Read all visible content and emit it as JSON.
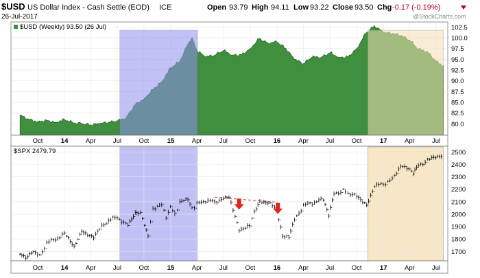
{
  "header": {
    "symbol": "$USD",
    "name": "US Dollar Index - Cash Settle (EOD)",
    "exchange": "ICE",
    "date": "26-Jul-2017",
    "open_label": "Open",
    "open": "93.79",
    "high_label": "High",
    "high": "94.11",
    "low_label": "Low",
    "low": "93.22",
    "close_label": "Close",
    "close": "93.50",
    "chg_label": "Chg",
    "chg": "-0.17 (-0.19%)",
    "watermark": "@StockCharts.com"
  },
  "colors": {
    "usd_fill": "#3f8f3f",
    "usd_line": "#1f5f1f",
    "highlight_blue": "#8f8ff0",
    "highlight_orange": "#f5dfb5",
    "arrow_red": "#e0261b",
    "trend_dash": "#e0261b",
    "chg_neg": "#c0001e"
  },
  "chart_data": [
    {
      "type": "area",
      "legend": "$USD (Weekly) 93.50 (26 Jul)",
      "x": [
        "2013-08-01",
        "2013-09-01",
        "2013-10-01",
        "2013-11-01",
        "2013-12-01",
        "2014-01-01",
        "2014-02-01",
        "2014-03-01",
        "2014-04-01",
        "2014-05-01",
        "2014-06-01",
        "2014-07-01",
        "2014-08-01",
        "2014-09-01",
        "2014-10-01",
        "2014-11-01",
        "2014-12-01",
        "2015-01-01",
        "2015-02-01",
        "2015-03-01",
        "2015-03-15",
        "2015-04-01",
        "2015-05-01",
        "2015-06-01",
        "2015-07-01",
        "2015-08-01",
        "2015-09-01",
        "2015-10-01",
        "2015-11-01",
        "2015-12-01",
        "2016-01-01",
        "2016-02-01",
        "2016-03-01",
        "2016-04-01",
        "2016-05-01",
        "2016-06-01",
        "2016-07-01",
        "2016-08-01",
        "2016-09-01",
        "2016-10-01",
        "2016-11-01",
        "2016-12-01",
        "2017-01-01",
        "2017-02-01",
        "2017-03-01",
        "2017-04-01",
        "2017-05-01",
        "2017-06-01",
        "2017-07-01",
        "2017-07-26"
      ],
      "values": [
        82.0,
        81.0,
        80.5,
        80.8,
        80.3,
        81.0,
        80.2,
        80.0,
        79.8,
        80.0,
        80.4,
        80.6,
        81.5,
        84.5,
        85.8,
        88.0,
        89.8,
        93.0,
        94.5,
        98.5,
        100.0,
        97.0,
        95.5,
        96.0,
        97.0,
        96.0,
        96.0,
        97.5,
        99.8,
        98.8,
        99.0,
        97.5,
        95.0,
        94.0,
        95.5,
        95.5,
        96.5,
        95.5,
        95.5,
        97.5,
        101.0,
        102.8,
        101.2,
        101.0,
        100.5,
        99.5,
        97.3,
        96.8,
        94.5,
        93.5
      ],
      "yticks": [
        "102.5",
        "100.0",
        "97.5",
        "95.0",
        "92.5",
        "90.0",
        "87.5",
        "85.0",
        "82.5",
        "80.0"
      ],
      "ylim": [
        77.5,
        103.5
      ]
    },
    {
      "type": "line",
      "legend": "$SPX 2479.79",
      "x": [
        "2013-08-01",
        "2013-08-20",
        "2013-09-15",
        "2013-10-08",
        "2013-11-01",
        "2013-12-01",
        "2013-12-31",
        "2014-02-03",
        "2014-03-01",
        "2014-04-11",
        "2014-05-01",
        "2014-06-01",
        "2014-07-01",
        "2014-08-07",
        "2014-09-01",
        "2014-09-19",
        "2014-10-15",
        "2014-11-01",
        "2014-12-01",
        "2014-12-16",
        "2014-12-31",
        "2015-01-15",
        "2015-02-01",
        "2015-03-01",
        "2015-03-15",
        "2015-04-01",
        "2015-05-01",
        "2015-06-01",
        "2015-07-01",
        "2015-07-20",
        "2015-08-24",
        "2015-09-29",
        "2015-10-15",
        "2015-11-03",
        "2015-12-01",
        "2015-12-31",
        "2016-01-20",
        "2016-02-11",
        "2016-03-01",
        "2016-04-01",
        "2016-05-01",
        "2016-06-08",
        "2016-06-27",
        "2016-07-15",
        "2016-08-15",
        "2016-09-01",
        "2016-10-01",
        "2016-11-04",
        "2016-12-01",
        "2016-12-31",
        "2017-01-31",
        "2017-03-01",
        "2017-04-13",
        "2017-05-01",
        "2017-06-01",
        "2017-07-26"
      ],
      "values": [
        1690,
        1655,
        1710,
        1660,
        1770,
        1800,
        1840,
        1740,
        1870,
        1815,
        1880,
        1950,
        1975,
        1905,
        2000,
        2010,
        1820,
        2050,
        2070,
        1980,
        2060,
        1990,
        2100,
        2110,
        2045,
        2080,
        2110,
        2100,
        2120,
        2130,
        1880,
        1900,
        2030,
        2110,
        2090,
        2040,
        1830,
        1810,
        1950,
        2070,
        2090,
        2120,
        1990,
        2160,
        2190,
        2170,
        2140,
        2080,
        2230,
        2240,
        2280,
        2395,
        2330,
        2390,
        2430,
        2480
      ],
      "yticks": [
        "2500",
        "2400",
        "2300",
        "2200",
        "2100",
        "2000",
        "1900",
        "1800",
        "1700"
      ],
      "ylim": [
        1630,
        2540
      ]
    }
  ],
  "x_axis_labels": {
    "top": [
      "Oct",
      "14",
      "Apr",
      "Jul",
      "Oct",
      "15",
      "Apr",
      "Jul",
      "Oct",
      "16",
      "Apr",
      "Jul",
      "Oct",
      "17",
      "Apr",
      "Jul"
    ],
    "bottom": [
      "Oct",
      "14",
      "Apr",
      "Jul",
      "Oct",
      "15",
      "Apr",
      "Jul",
      "Oct",
      "16",
      "Apr",
      "Jul",
      "Oct",
      "17",
      "Apr",
      "Jul"
    ],
    "dates": [
      "2013-10-01",
      "2014-01-01",
      "2014-04-01",
      "2014-07-01",
      "2014-10-01",
      "2015-01-01",
      "2015-04-01",
      "2015-07-01",
      "2015-10-01",
      "2016-01-01",
      "2016-04-01",
      "2016-07-01",
      "2016-10-01",
      "2017-01-01",
      "2017-04-01",
      "2017-07-01"
    ],
    "bold": [
      "14",
      "15",
      "16",
      "17"
    ]
  },
  "highlights": [
    {
      "name": "highlight-blue",
      "start": "2014-07-10",
      "end": "2015-04-03",
      "color": "#8f8ff0"
    },
    {
      "name": "highlight-orange",
      "start": "2016-11-08",
      "end": "2017-07-26",
      "color": "#f5dfb5"
    }
  ],
  "annotations": {
    "trendline": {
      "start": [
        "2015-06-01",
        2135
      ],
      "end": [
        "2016-01-05",
        2095
      ]
    },
    "arrows": [
      {
        "date": "2015-08-24",
        "price": 2080
      },
      {
        "date": "2016-01-04",
        "price": 2045
      }
    ]
  },
  "date_range": {
    "start": "2013-07-01",
    "end": "2017-08-10"
  }
}
